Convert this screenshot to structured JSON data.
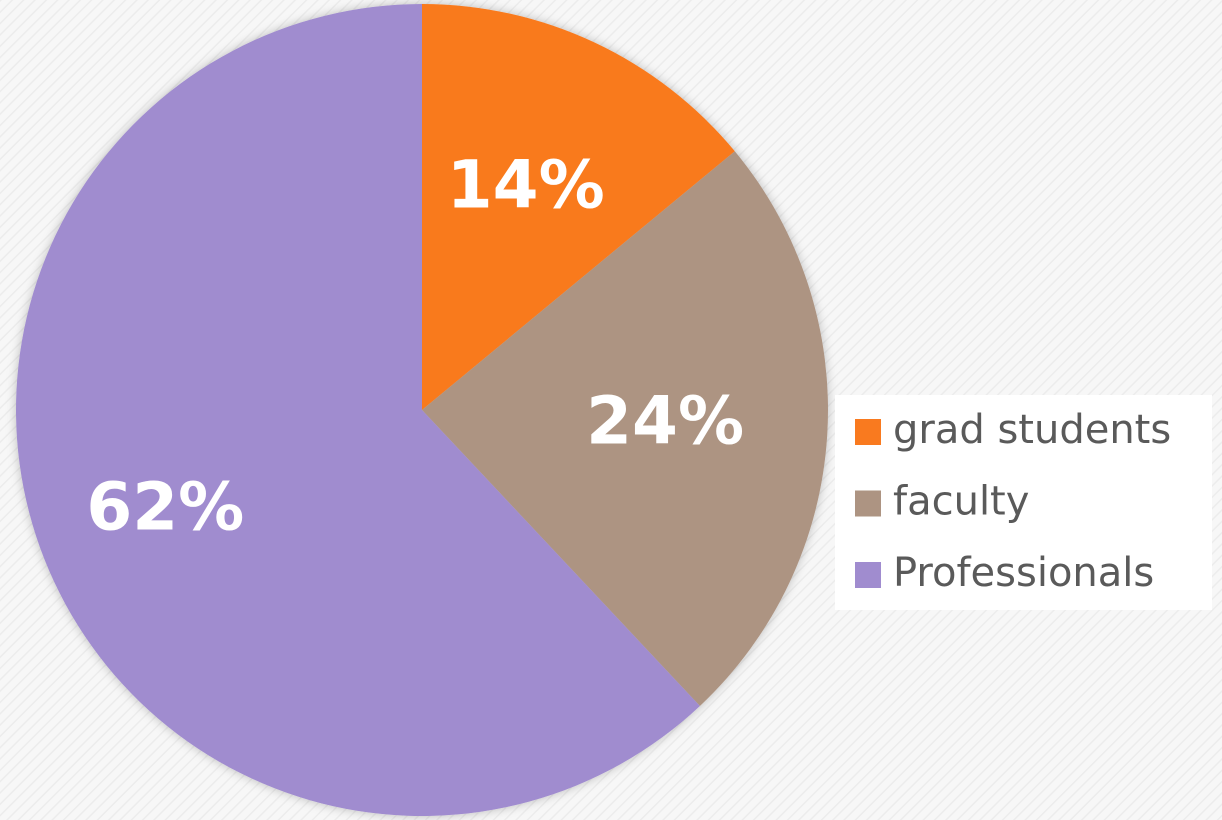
{
  "chart_data": {
    "type": "pie",
    "categories": [
      "grad students",
      "faculty",
      "Professionals"
    ],
    "values": [
      14,
      24,
      62
    ],
    "value_labels": [
      "14%",
      "24%",
      "62%"
    ],
    "colors": [
      "#f97a1f",
      "#ad9482",
      "#a08ccf"
    ],
    "legend": "right"
  }
}
